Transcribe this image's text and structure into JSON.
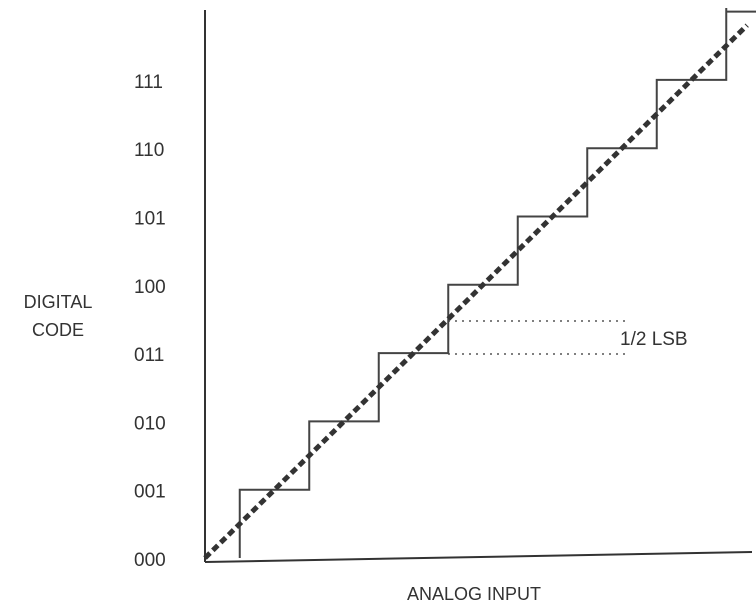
{
  "chart_data": {
    "type": "line",
    "title": "",
    "xlabel": "ANALOG INPUT",
    "ylabel_lines": [
      "DIGITAL",
      "CODE"
    ],
    "y_tick_labels": [
      "000",
      "001",
      "010",
      "011",
      "100",
      "101",
      "110",
      "111"
    ],
    "x_tick_labels": [],
    "series": [
      {
        "style": "solid-staircase",
        "x": [
          0.5,
          1.5,
          2.5,
          3.5,
          4.5,
          5.5,
          6.5,
          7.5
        ]
      },
      {
        "style": "dashed-ideal",
        "x": [
          0,
          7.8
        ],
        "y": [
          0,
          7.8
        ]
      }
    ],
    "annotations": [
      {
        "text": "1/2  LSB",
        "from_y": 3,
        "to_y": 3.5
      }
    ],
    "ylim": [
      0,
      8
    ],
    "xlim": [
      0,
      8
    ],
    "grid": false,
    "legend": "none"
  }
}
